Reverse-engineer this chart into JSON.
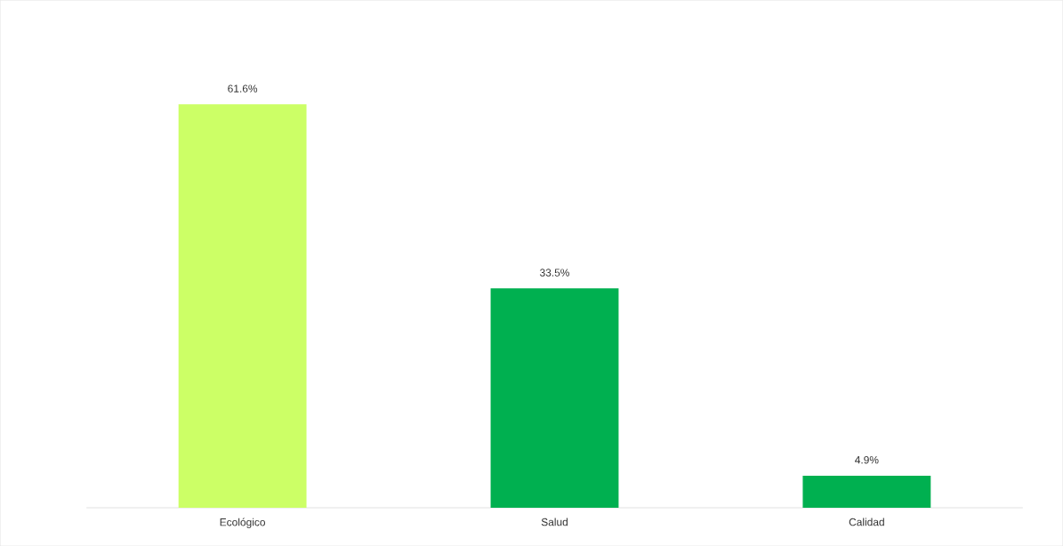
{
  "chart_data": {
    "type": "bar",
    "categories": [
      "Ecológico",
      "Salud",
      "Calidad"
    ],
    "values": [
      61.6,
      33.5,
      4.9
    ],
    "colors": [
      "#ccff66",
      "#00b050",
      "#00b050"
    ],
    "value_labels": [
      "61.6%",
      "33.5%",
      "4.9%"
    ]
  }
}
